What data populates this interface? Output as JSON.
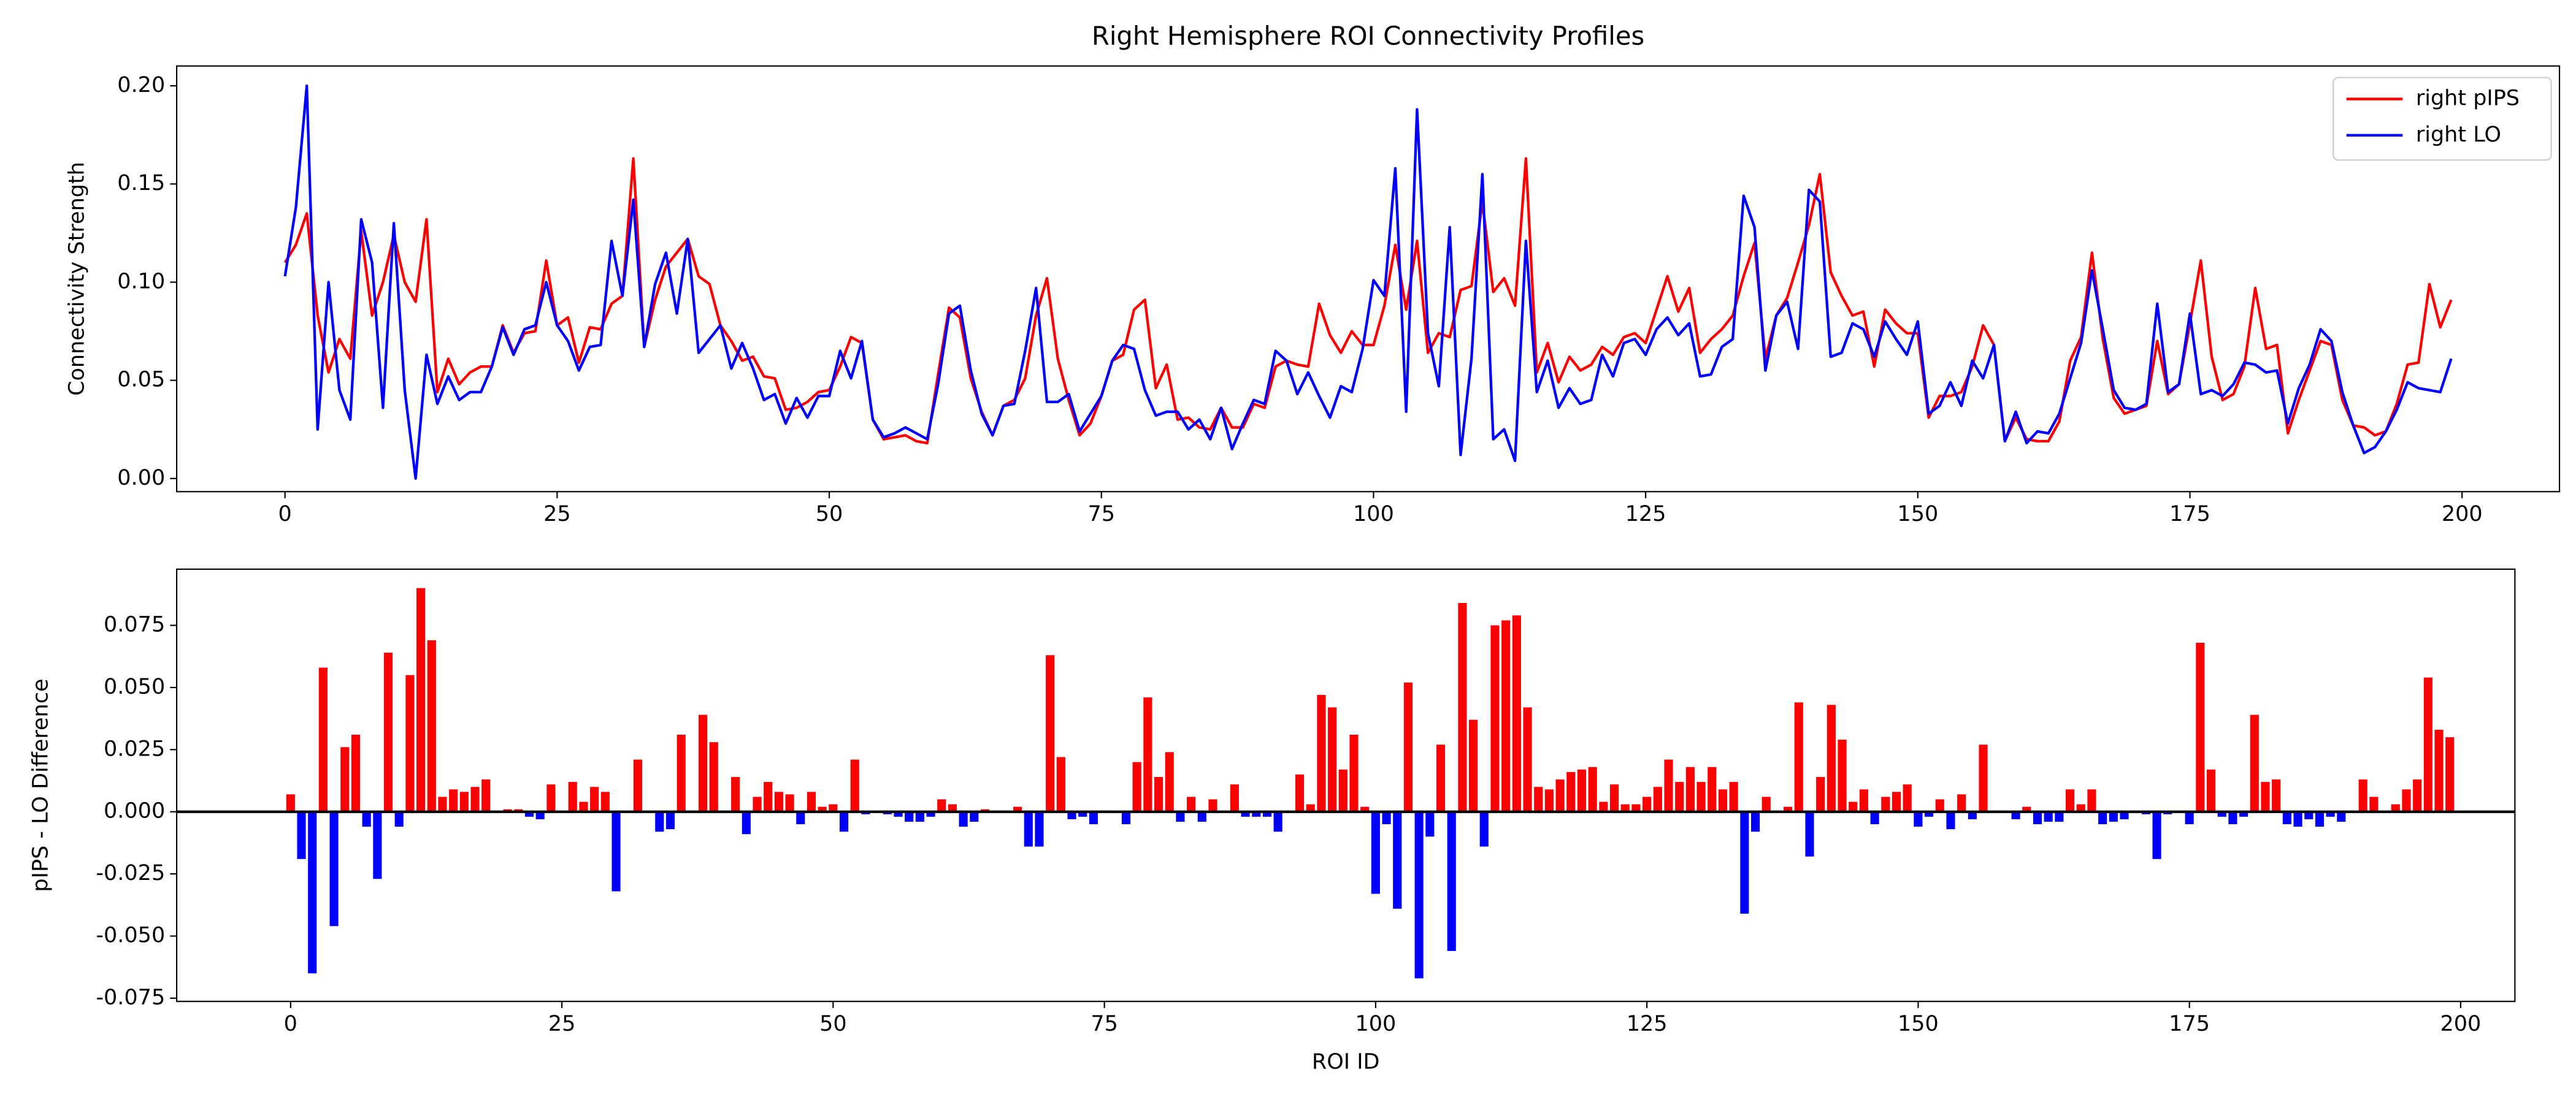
{
  "chart_data": [
    {
      "type": "line",
      "title": "Right Hemisphere ROI Connectivity Profiles",
      "ylabel": "Connectivity Strength",
      "x": [
        0,
        1,
        2,
        3,
        4,
        5,
        6,
        7,
        8,
        9,
        10,
        11,
        12,
        13,
        14,
        15,
        16,
        17,
        18,
        19,
        20,
        21,
        22,
        23,
        24,
        25,
        26,
        27,
        28,
        29,
        30,
        31,
        32,
        33,
        34,
        35,
        36,
        37,
        38,
        39,
        40,
        41,
        42,
        43,
        44,
        45,
        46,
        47,
        48,
        49,
        50,
        51,
        52,
        53,
        54,
        55,
        56,
        57,
        58,
        59,
        60,
        61,
        62,
        63,
        64,
        65,
        66,
        67,
        68,
        69,
        70,
        71,
        72,
        73,
        74,
        75,
        76,
        77,
        78,
        79,
        80,
        81,
        82,
        83,
        84,
        85,
        86,
        87,
        88,
        89,
        90,
        91,
        92,
        93,
        94,
        95,
        96,
        97,
        98,
        99,
        100,
        101,
        102,
        103,
        104,
        105,
        106,
        107,
        108,
        109,
        110,
        111,
        112,
        113,
        114,
        115,
        116,
        117,
        118,
        119,
        120,
        121,
        122,
        123,
        124,
        125,
        126,
        127,
        128,
        129,
        130,
        131,
        132,
        133,
        134,
        135,
        136,
        137,
        138,
        139,
        140,
        141,
        142,
        143,
        144,
        145,
        146,
        147,
        148,
        149,
        150,
        151,
        152,
        153,
        154,
        155,
        156,
        157,
        158,
        159,
        160,
        161,
        162,
        163,
        164,
        165,
        166,
        167,
        168,
        169,
        170,
        171,
        172,
        173,
        174,
        175,
        176,
        177,
        178,
        179,
        180,
        181,
        182,
        183,
        184,
        185,
        186,
        187,
        188,
        189,
        190,
        191,
        192,
        193,
        194,
        195,
        196,
        197,
        198,
        199
      ],
      "series": [
        {
          "name": "right pIPS",
          "color": "#ff0000",
          "values": [
            0.11,
            0.119,
            0.135,
            0.083,
            0.054,
            0.071,
            0.061,
            0.126,
            0.083,
            0.1,
            0.124,
            0.1,
            0.09,
            0.132,
            0.044,
            0.061,
            0.048,
            0.054,
            0.057,
            0.057,
            0.078,
            0.064,
            0.074,
            0.075,
            0.111,
            0.078,
            0.082,
            0.059,
            0.077,
            0.076,
            0.089,
            0.093,
            0.163,
            0.067,
            0.091,
            0.108,
            0.115,
            0.122,
            0.103,
            0.099,
            0.078,
            0.07,
            0.06,
            0.062,
            0.052,
            0.051,
            0.035,
            0.036,
            0.039,
            0.044,
            0.045,
            0.057,
            0.072,
            0.069,
            0.03,
            0.02,
            0.021,
            0.022,
            0.019,
            0.018,
            0.053,
            0.087,
            0.082,
            0.051,
            0.034,
            0.022,
            0.037,
            0.04,
            0.051,
            0.083,
            0.102,
            0.061,
            0.04,
            0.022,
            0.028,
            0.042,
            0.06,
            0.063,
            0.086,
            0.091,
            0.046,
            0.058,
            0.03,
            0.031,
            0.026,
            0.025,
            0.036,
            0.026,
            0.026,
            0.038,
            0.036,
            0.057,
            0.06,
            0.058,
            0.057,
            0.089,
            0.073,
            0.064,
            0.075,
            0.068,
            0.068,
            0.088,
            0.119,
            0.086,
            0.121,
            0.064,
            0.074,
            0.072,
            0.096,
            0.098,
            0.141,
            0.095,
            0.102,
            0.088,
            0.163,
            0.054,
            0.069,
            0.049,
            0.062,
            0.055,
            0.058,
            0.067,
            0.063,
            0.072,
            0.074,
            0.069,
            0.086,
            0.103,
            0.085,
            0.097,
            0.064,
            0.071,
            0.076,
            0.083,
            0.103,
            0.12,
            0.061,
            0.083,
            0.092,
            0.11,
            0.129,
            0.155,
            0.105,
            0.093,
            0.083,
            0.085,
            0.057,
            0.086,
            0.079,
            0.074,
            0.074,
            0.031,
            0.042,
            0.042,
            0.044,
            0.057,
            0.078,
            0.068,
            0.019,
            0.031,
            0.02,
            0.019,
            0.019,
            0.029,
            0.06,
            0.072,
            0.115,
            0.071,
            0.041,
            0.033,
            0.035,
            0.037,
            0.07,
            0.043,
            0.048,
            0.079,
            0.111,
            0.062,
            0.04,
            0.043,
            0.057,
            0.097,
            0.066,
            0.068,
            0.023,
            0.04,
            0.055,
            0.07,
            0.068,
            0.04,
            0.027,
            0.026,
            0.022,
            0.024,
            0.038,
            0.058,
            0.059,
            0.099,
            0.077,
            0.091
          ]
        },
        {
          "name": "right LO",
          "color": "#0000ff",
          "values": [
            0.103,
            0.138,
            0.2,
            0.025,
            0.1,
            0.045,
            0.03,
            0.132,
            0.11,
            0.036,
            0.13,
            0.045,
            0.0,
            0.063,
            0.038,
            0.052,
            0.04,
            0.044,
            0.044,
            0.057,
            0.077,
            0.063,
            0.076,
            0.078,
            0.1,
            0.078,
            0.07,
            0.055,
            0.067,
            0.068,
            0.121,
            0.093,
            0.142,
            0.067,
            0.099,
            0.115,
            0.084,
            0.122,
            0.064,
            0.071,
            0.078,
            0.056,
            0.069,
            0.056,
            0.04,
            0.043,
            0.028,
            0.041,
            0.031,
            0.042,
            0.042,
            0.065,
            0.051,
            0.07,
            0.03,
            0.021,
            0.023,
            0.026,
            0.023,
            0.02,
            0.048,
            0.084,
            0.088,
            0.055,
            0.033,
            0.022,
            0.037,
            0.038,
            0.065,
            0.097,
            0.039,
            0.039,
            0.043,
            0.024,
            0.033,
            0.042,
            0.06,
            0.068,
            0.066,
            0.045,
            0.032,
            0.034,
            0.034,
            0.025,
            0.03,
            0.02,
            0.036,
            0.015,
            0.028,
            0.04,
            0.038,
            0.065,
            0.06,
            0.043,
            0.054,
            0.042,
            0.031,
            0.047,
            0.044,
            0.066,
            0.101,
            0.093,
            0.158,
            0.034,
            0.188,
            0.074,
            0.047,
            0.128,
            0.012,
            0.061,
            0.155,
            0.02,
            0.025,
            0.009,
            0.121,
            0.044,
            0.06,
            0.036,
            0.046,
            0.038,
            0.04,
            0.063,
            0.052,
            0.069,
            0.071,
            0.063,
            0.076,
            0.082,
            0.073,
            0.079,
            0.052,
            0.053,
            0.067,
            0.071,
            0.144,
            0.128,
            0.055,
            0.083,
            0.09,
            0.066,
            0.147,
            0.141,
            0.062,
            0.064,
            0.079,
            0.076,
            0.062,
            0.08,
            0.071,
            0.063,
            0.08,
            0.033,
            0.037,
            0.049,
            0.037,
            0.06,
            0.051,
            0.068,
            0.019,
            0.034,
            0.018,
            0.024,
            0.023,
            0.033,
            0.051,
            0.069,
            0.106,
            0.076,
            0.045,
            0.036,
            0.035,
            0.038,
            0.089,
            0.044,
            0.048,
            0.084,
            0.043,
            0.045,
            0.042,
            0.048,
            0.059,
            0.058,
            0.054,
            0.055,
            0.028,
            0.046,
            0.058,
            0.076,
            0.07,
            0.044,
            0.027,
            0.013,
            0.016,
            0.024,
            0.035,
            0.049,
            0.046,
            0.045,
            0.044,
            0.061
          ]
        }
      ],
      "xlim": [
        -9.95,
        208.95
      ],
      "ylim": [
        -0.0067,
        0.2101
      ],
      "xticks": [
        0,
        25,
        50,
        75,
        100,
        125,
        150,
        175,
        200
      ],
      "yticks": [
        {
          "value": 0,
          "label": "0.00"
        },
        {
          "value": 0.05,
          "label": "0.05"
        },
        {
          "value": 0.1,
          "label": "0.10"
        },
        0.15,
        {
          "value": 0.2,
          "label": "0.20"
        }
      ],
      "grid": false,
      "legend": "upper right"
    },
    {
      "type": "bar",
      "xlabel": "ROI ID",
      "ylabel": "pIPS - LO Difference",
      "x": [
        0,
        1,
        2,
        3,
        4,
        5,
        6,
        7,
        8,
        9,
        10,
        11,
        12,
        13,
        14,
        15,
        16,
        17,
        18,
        19,
        20,
        21,
        22,
        23,
        24,
        25,
        26,
        27,
        28,
        29,
        30,
        31,
        32,
        33,
        34,
        35,
        36,
        37,
        38,
        39,
        40,
        41,
        42,
        43,
        44,
        45,
        46,
        47,
        48,
        49,
        50,
        51,
        52,
        53,
        54,
        55,
        56,
        57,
        58,
        59,
        60,
        61,
        62,
        63,
        64,
        65,
        66,
        67,
        68,
        69,
        70,
        71,
        72,
        73,
        74,
        75,
        76,
        77,
        78,
        79,
        80,
        81,
        82,
        83,
        84,
        85,
        86,
        87,
        88,
        89,
        90,
        91,
        92,
        93,
        94,
        95,
        96,
        97,
        98,
        99,
        100,
        101,
        102,
        103,
        104,
        105,
        106,
        107,
        108,
        109,
        110,
        111,
        112,
        113,
        114,
        115,
        116,
        117,
        118,
        119,
        120,
        121,
        122,
        123,
        124,
        125,
        126,
        127,
        128,
        129,
        130,
        131,
        132,
        133,
        134,
        135,
        136,
        137,
        138,
        139,
        140,
        141,
        142,
        143,
        144,
        145,
        146,
        147,
        148,
        149,
        150,
        151,
        152,
        153,
        154,
        155,
        156,
        157,
        158,
        159,
        160,
        161,
        162,
        163,
        164,
        165,
        166,
        167,
        168,
        169,
        170,
        171,
        172,
        173,
        174,
        175,
        176,
        177,
        178,
        179,
        180,
        181,
        182,
        183,
        184,
        185,
        186,
        187,
        188,
        189,
        190,
        191,
        192,
        193,
        194,
        195,
        196,
        197,
        198,
        199
      ],
      "values": [
        0.007,
        -0.019,
        -0.065,
        0.058,
        -0.046,
        0.026,
        0.031,
        -0.006,
        -0.027,
        0.064,
        -0.006,
        0.055,
        0.09,
        0.069,
        0.006,
        0.009,
        0.008,
        0.01,
        0.013,
        0,
        0.001,
        0.001,
        -0.002,
        -0.003,
        0.011,
        0,
        0.012,
        0.004,
        0.01,
        0.008,
        -0.032,
        0,
        0.021,
        0,
        -0.008,
        -0.007,
        0.031,
        0,
        0.039,
        0.028,
        0,
        0.014,
        -0.009,
        0.006,
        0.012,
        0.008,
        0.007,
        -0.005,
        0.008,
        0.002,
        0.003,
        -0.008,
        0.021,
        -0.001,
        0,
        -0.001,
        -0.002,
        -0.004,
        -0.004,
        -0.002,
        0.005,
        0.003,
        -0.006,
        -0.004,
        0.001,
        0,
        0,
        0.002,
        -0.014,
        -0.014,
        0.063,
        0.022,
        -0.003,
        -0.002,
        -0.005,
        0,
        0,
        -0.005,
        0.02,
        0.046,
        0.014,
        0.024,
        -0.004,
        0.006,
        -0.004,
        0.005,
        0,
        0.011,
        -0.002,
        -0.002,
        -0.002,
        -0.008,
        0,
        0.015,
        0.003,
        0.047,
        0.042,
        0.017,
        0.031,
        0.002,
        -0.033,
        -0.005,
        -0.039,
        0.052,
        -0.067,
        -0.01,
        0.027,
        -0.056,
        0.084,
        0.037,
        -0.014,
        0.075,
        0.077,
        0.079,
        0.042,
        0.01,
        0.009,
        0.013,
        0.016,
        0.017,
        0.018,
        0.004,
        0.011,
        0.003,
        0.003,
        0.006,
        0.01,
        0.021,
        0.012,
        0.018,
        0.012,
        0.018,
        0.009,
        0.012,
        -0.041,
        -0.008,
        0.006,
        0,
        0.002,
        0.044,
        -0.018,
        0.014,
        0.043,
        0.029,
        0.004,
        0.009,
        -0.005,
        0.006,
        0.008,
        0.011,
        -0.006,
        -0.002,
        0.005,
        -0.007,
        0.007,
        -0.003,
        0.027,
        0,
        0,
        -0.003,
        0.002,
        -0.005,
        -0.004,
        -0.004,
        0.009,
        0.003,
        0.009,
        -0.005,
        -0.004,
        -0.003,
        0,
        -0.001,
        -0.019,
        -0.001,
        0,
        -0.005,
        0.068,
        0.017,
        -0.002,
        -0.005,
        -0.002,
        0.039,
        0.012,
        0.013,
        -0.005,
        -0.006,
        -0.003,
        -0.006,
        -0.002,
        -0.004,
        0,
        0.013,
        0.006,
        0,
        0.003,
        0.009,
        0.013,
        0.054,
        0.033,
        0.03
      ],
      "positive_color": "#ff0000",
      "negative_color": "#0000ff",
      "zero_line": true,
      "xlim": [
        -10.5,
        205
      ],
      "ylim": [
        -0.0763,
        0.0976
      ],
      "xticks": [
        0,
        25,
        50,
        75,
        100,
        125,
        150,
        175,
        200
      ],
      "yticks": [
        -0.075,
        {
          "value": -0.05,
          "label": "-0.050"
        },
        -0.025,
        {
          "value": 0,
          "label": "0.000"
        },
        0.025,
        {
          "value": 0.05,
          "label": "0.050"
        },
        0.075
      ],
      "grid": false
    }
  ]
}
